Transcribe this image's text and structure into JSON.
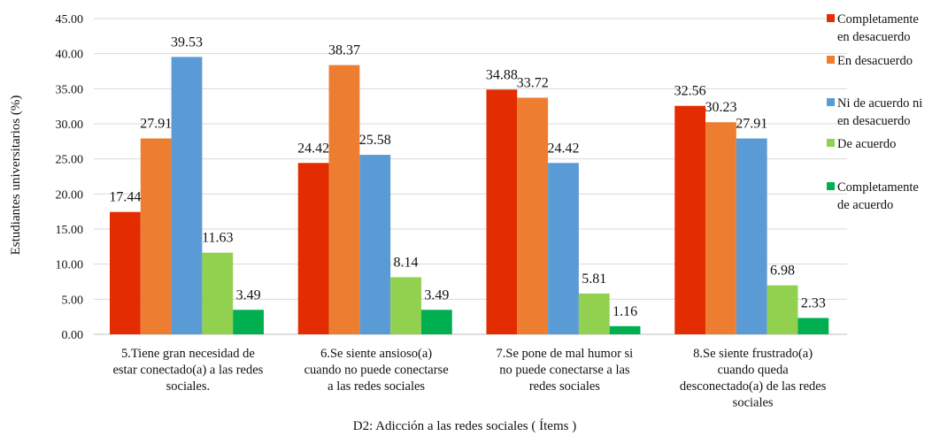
{
  "chart_data": {
    "type": "bar",
    "xlabel": "D2: Adicción a las redes sociales ( Ítems )",
    "ylabel": "Estudiantes universitarios (%)",
    "ylim": [
      0,
      45
    ],
    "yticks": [
      "0.00",
      "5.00",
      "10.00",
      "15.00",
      "20.00",
      "25.00",
      "30.00",
      "35.00",
      "40.00",
      "45.00"
    ],
    "grid": true,
    "legend_position": "right",
    "categories": [
      "5.Tiene gran necesidad de estar conectado(a) a las redes sociales.",
      "6.Se siente ansioso(a) cuando no puede conectarse a las redes sociales",
      "7.Se pone de mal humor si no puede conectarse a las redes sociales",
      "8.Se siente frustrado(a) cuando queda desconectado(a) de las redes sociales"
    ],
    "category_lines": [
      [
        "5.Tiene gran necesidad de",
        "estar conectado(a) a las redes",
        "sociales."
      ],
      [
        "6.Se siente ansioso(a)",
        "cuando no puede conectarse",
        "a las redes sociales"
      ],
      [
        "7.Se pone de mal humor si",
        "no puede conectarse a las",
        "redes sociales"
      ],
      [
        "8.Se siente frustrado(a)",
        "cuando queda",
        "desconectado(a) de las redes",
        "sociales"
      ]
    ],
    "series": [
      {
        "name": "Completamente en desacuerdo",
        "legend_lines": [
          "Completamente",
          "en desacuerdo"
        ],
        "color": "#e32d00",
        "values": [
          17.44,
          24.42,
          34.88,
          32.56
        ],
        "labels": [
          "17.44",
          "24.42",
          "34.88",
          "32.56"
        ]
      },
      {
        "name": "En desacuerdo",
        "legend_lines": [
          "En desacuerdo"
        ],
        "color": "#ed7d31",
        "values": [
          27.91,
          38.37,
          33.72,
          30.23
        ],
        "labels": [
          "27.91",
          "38.37",
          "33.72",
          "30.23"
        ]
      },
      {
        "name": "Ni de acuerdo ni en desacuerdo",
        "legend_lines": [
          "Ni de acuerdo ni",
          "en desacuerdo"
        ],
        "color": "#5b9bd5",
        "values": [
          39.53,
          25.58,
          24.42,
          27.91
        ],
        "labels": [
          "39.53",
          "25.58",
          "24.42",
          "27.91"
        ]
      },
      {
        "name": "De acuerdo",
        "legend_lines": [
          "De acuerdo"
        ],
        "color": "#92d050",
        "values": [
          11.63,
          8.14,
          5.81,
          6.98
        ],
        "labels": [
          "11.63",
          "8.14",
          "5.81",
          "6.98"
        ]
      },
      {
        "name": "Completamente de acuerdo",
        "legend_lines": [
          "Completamente",
          "de acuerdo"
        ],
        "color": "#00b050",
        "values": [
          3.49,
          3.49,
          1.16,
          2.33
        ],
        "labels": [
          "3.49",
          "3.49",
          "1.16",
          "2.33"
        ]
      }
    ]
  }
}
